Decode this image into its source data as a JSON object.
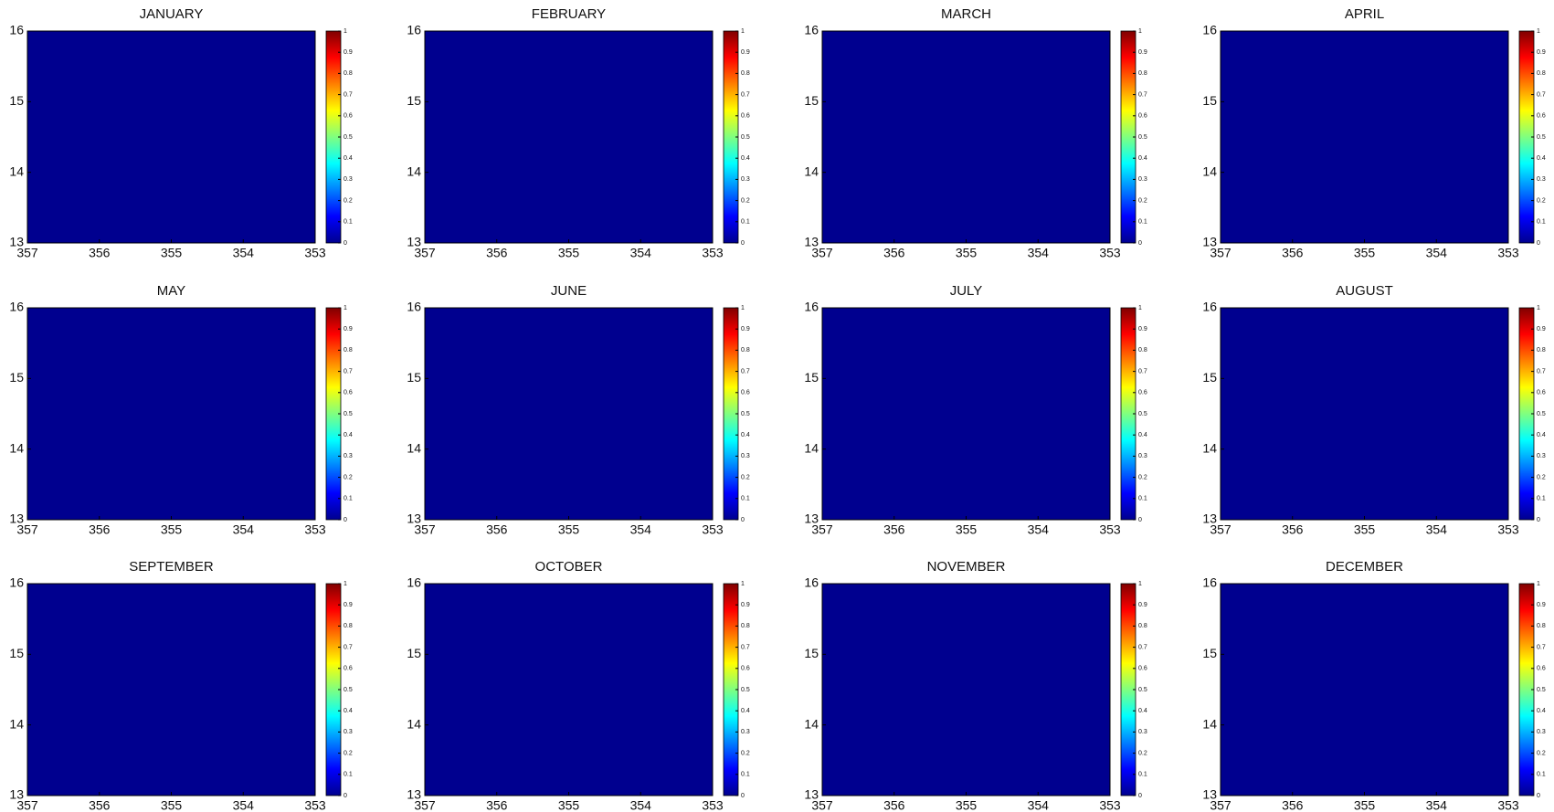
{
  "chart_data": [
    {
      "type": "heatmap",
      "title": "JANUARY",
      "xlim": [
        357,
        353
      ],
      "ylim": [
        13,
        16
      ],
      "xticks": [
        357,
        356,
        355,
        354,
        353
      ],
      "yticks": [
        13,
        14,
        15,
        16
      ],
      "clim": [
        0,
        1
      ],
      "cticks": [
        0,
        0.1,
        0.2,
        0.3,
        0.4,
        0.5,
        0.6,
        0.7,
        0.8,
        0.9,
        1
      ]
    },
    {
      "type": "heatmap",
      "title": "FEBRUARY",
      "xlim": [
        357,
        353
      ],
      "ylim": [
        13,
        16
      ],
      "xticks": [
        357,
        356,
        355,
        354,
        353
      ],
      "yticks": [
        13,
        14,
        15,
        16
      ],
      "clim": [
        0,
        1
      ],
      "cticks": [
        0,
        0.1,
        0.2,
        0.3,
        0.4,
        0.5,
        0.6,
        0.7,
        0.8,
        0.9,
        1
      ]
    },
    {
      "type": "heatmap",
      "title": "MARCH",
      "xlim": [
        357,
        353
      ],
      "ylim": [
        13,
        16
      ],
      "xticks": [
        357,
        356,
        355,
        354,
        353
      ],
      "yticks": [
        13,
        14,
        15,
        16
      ],
      "clim": [
        0,
        1
      ],
      "cticks": [
        0,
        0.1,
        0.2,
        0.3,
        0.4,
        0.5,
        0.6,
        0.7,
        0.8,
        0.9,
        1
      ]
    },
    {
      "type": "heatmap",
      "title": "APRIL",
      "xlim": [
        357,
        353
      ],
      "ylim": [
        13,
        16
      ],
      "xticks": [
        357,
        356,
        355,
        354,
        353
      ],
      "yticks": [
        13,
        14,
        15,
        16
      ],
      "clim": [
        0,
        1
      ],
      "cticks": [
        0,
        0.1,
        0.2,
        0.3,
        0.4,
        0.5,
        0.6,
        0.7,
        0.8,
        0.9,
        1
      ]
    },
    {
      "type": "heatmap",
      "title": "MAY",
      "xlim": [
        357,
        353
      ],
      "ylim": [
        13,
        16
      ],
      "xticks": [
        357,
        356,
        355,
        354,
        353
      ],
      "yticks": [
        13,
        14,
        15,
        16
      ],
      "clim": [
        0,
        1
      ],
      "cticks": [
        0,
        0.1,
        0.2,
        0.3,
        0.4,
        0.5,
        0.6,
        0.7,
        0.8,
        0.9,
        1
      ]
    },
    {
      "type": "heatmap",
      "title": "JUNE",
      "xlim": [
        357,
        353
      ],
      "ylim": [
        13,
        16
      ],
      "xticks": [
        357,
        356,
        355,
        354,
        353
      ],
      "yticks": [
        13,
        14,
        15,
        16
      ],
      "clim": [
        0,
        1
      ],
      "cticks": [
        0,
        0.1,
        0.2,
        0.3,
        0.4,
        0.5,
        0.6,
        0.7,
        0.8,
        0.9,
        1
      ]
    },
    {
      "type": "heatmap",
      "title": "JULY",
      "xlim": [
        357,
        353
      ],
      "ylim": [
        13,
        16
      ],
      "xticks": [
        357,
        356,
        355,
        354,
        353
      ],
      "yticks": [
        13,
        14,
        15,
        16
      ],
      "clim": [
        0,
        1
      ],
      "cticks": [
        0,
        0.1,
        0.2,
        0.3,
        0.4,
        0.5,
        0.6,
        0.7,
        0.8,
        0.9,
        1
      ]
    },
    {
      "type": "heatmap",
      "title": "AUGUST",
      "xlim": [
        357,
        353
      ],
      "ylim": [
        13,
        16
      ],
      "xticks": [
        357,
        356,
        355,
        354,
        353
      ],
      "yticks": [
        13,
        14,
        15,
        16
      ],
      "clim": [
        0,
        1
      ],
      "cticks": [
        0,
        0.1,
        0.2,
        0.3,
        0.4,
        0.5,
        0.6,
        0.7,
        0.8,
        0.9,
        1
      ]
    },
    {
      "type": "heatmap",
      "title": "SEPTEMBER",
      "xlim": [
        357,
        353
      ],
      "ylim": [
        13,
        16
      ],
      "xticks": [
        357,
        356,
        355,
        354,
        353
      ],
      "yticks": [
        13,
        14,
        15,
        16
      ],
      "clim": [
        0,
        1
      ],
      "cticks": [
        0,
        0.1,
        0.2,
        0.3,
        0.4,
        0.5,
        0.6,
        0.7,
        0.8,
        0.9,
        1
      ]
    },
    {
      "type": "heatmap",
      "title": "OCTOBER",
      "xlim": [
        357,
        353
      ],
      "ylim": [
        13,
        16
      ],
      "xticks": [
        357,
        356,
        355,
        354,
        353
      ],
      "yticks": [
        13,
        14,
        15,
        16
      ],
      "clim": [
        0,
        1
      ],
      "cticks": [
        0,
        0.1,
        0.2,
        0.3,
        0.4,
        0.5,
        0.6,
        0.7,
        0.8,
        0.9,
        1
      ]
    },
    {
      "type": "heatmap",
      "title": "NOVEMBER",
      "xlim": [
        357,
        353
      ],
      "ylim": [
        13,
        16
      ],
      "xticks": [
        357,
        356,
        355,
        354,
        353
      ],
      "yticks": [
        13,
        14,
        15,
        16
      ],
      "clim": [
        0,
        1
      ],
      "cticks": [
        0,
        0.1,
        0.2,
        0.3,
        0.4,
        0.5,
        0.6,
        0.7,
        0.8,
        0.9,
        1
      ]
    },
    {
      "type": "heatmap",
      "title": "DECEMBER",
      "xlim": [
        357,
        353
      ],
      "ylim": [
        13,
        16
      ],
      "xticks": [
        357,
        356,
        355,
        354,
        353
      ],
      "yticks": [
        13,
        14,
        15,
        16
      ],
      "clim": [
        0,
        1
      ],
      "cticks": [
        0,
        0.1,
        0.2,
        0.3,
        0.4,
        0.5,
        0.6,
        0.7,
        0.8,
        0.9,
        1
      ]
    }
  ]
}
